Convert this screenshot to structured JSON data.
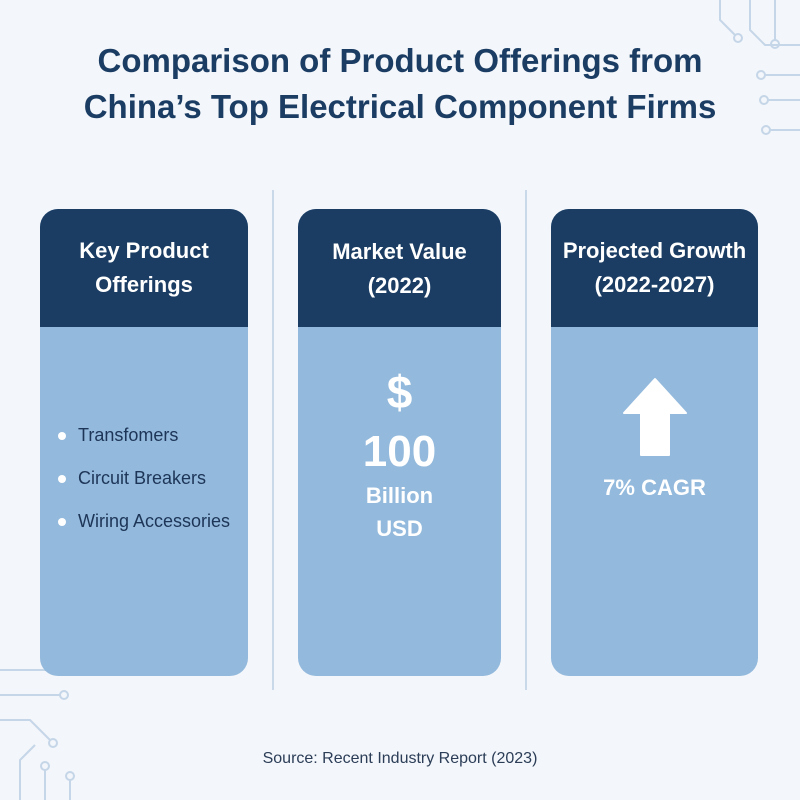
{
  "title": {
    "line1": "Comparison of Product Offerings from",
    "line2": "China’s Top Electrical Component Firms"
  },
  "colors": {
    "header": "#1b3d63",
    "card_body": "#93b9dc",
    "background": "#f3f6fa",
    "title": "#1b3d63"
  },
  "cards": [
    {
      "header_line1": "Key Product",
      "header_line2": "Offerings",
      "items": [
        "Transfomers",
        "Circuit Breakers",
        "Wiring Accessories"
      ]
    },
    {
      "header_line1": "Market Value",
      "header_line2": "(2022)",
      "icon": "dollar-sign",
      "symbol": "$",
      "value": "100",
      "unit_line1": "Billion",
      "unit_line2": "USD"
    },
    {
      "header_line1": "Projected Growth",
      "header_line2": "(2022-2027)",
      "icon": "arrow-up-icon",
      "value": "7% CAGR"
    }
  ],
  "source": "Source: Recent Industry Report (2023)"
}
